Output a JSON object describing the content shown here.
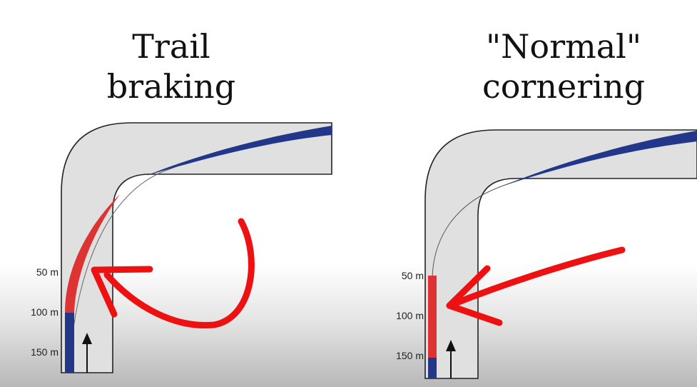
{
  "panels": [
    {
      "title_lines": [
        "Trail",
        "braking"
      ],
      "distance_labels": [
        "50 m",
        "100 m",
        "150 m"
      ]
    },
    {
      "title_lines": [
        "\"Normal\"",
        "cornering"
      ],
      "distance_labels": [
        "50 m",
        "100 m",
        "150 m"
      ]
    }
  ],
  "colors": {
    "road": "#e0e0e0",
    "road_edge": "#222222",
    "braking_zone": "#dd3333",
    "acceleration_zone": "#23378a",
    "annotation": "#ee1111"
  }
}
